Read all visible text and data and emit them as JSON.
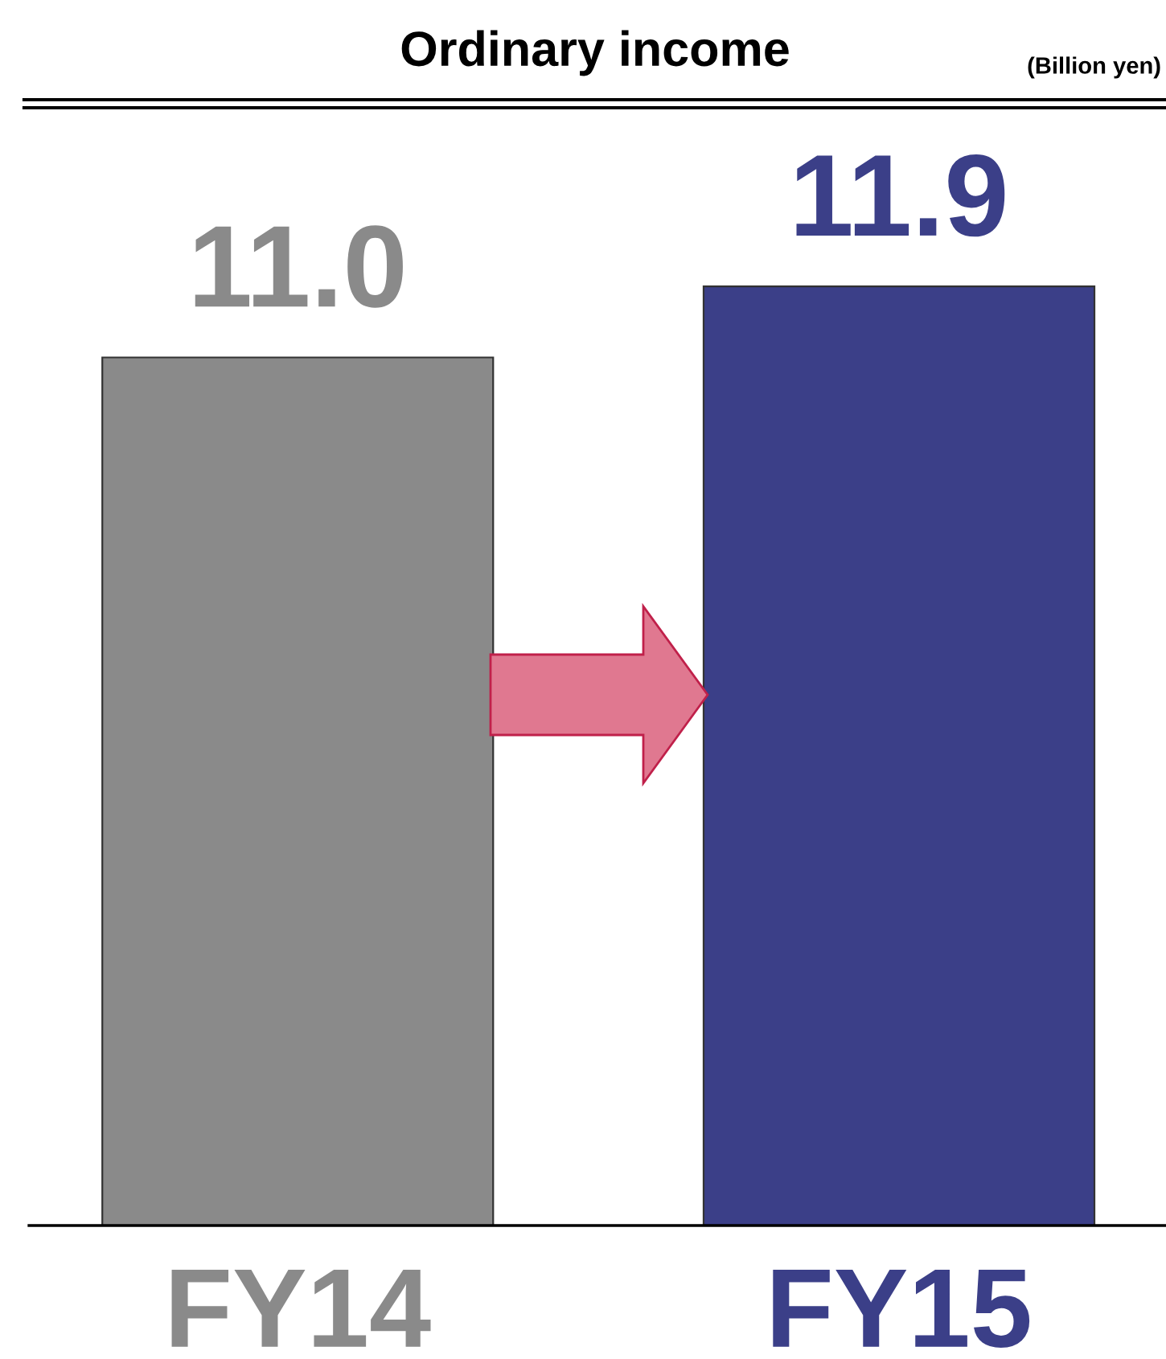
{
  "chart_data": {
    "type": "bar",
    "title": "Ordinary income",
    "subtitle": "(Billion yen)",
    "categories": [
      "FY14",
      "FY15"
    ],
    "values": [
      11.0,
      11.9
    ],
    "value_labels": [
      "11.0",
      "11.9"
    ],
    "colors": [
      "#8a8a8a",
      "#3b3f88"
    ],
    "grid": false,
    "legend": false
  }
}
